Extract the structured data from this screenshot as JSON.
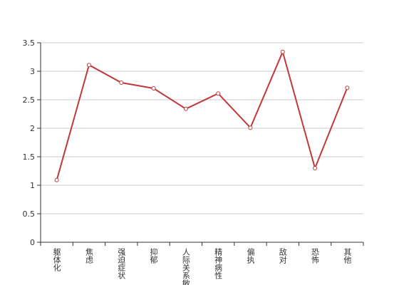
{
  "chart_data": {
    "type": "line",
    "categories": [
      "躯体化",
      "焦虑",
      "强迫症状",
      "抑郁",
      "人际关系敏感",
      "精神病性",
      "偏执",
      "敌对",
      "恐怖",
      "其他"
    ],
    "series": [
      {
        "color": "#c0393b",
        "values": [
          1.09,
          3.11,
          2.8,
          2.7,
          2.34,
          2.61,
          2.01,
          3.34,
          1.3,
          2.71
        ]
      }
    ],
    "ylim": [
      0,
      3.5
    ],
    "yticks": [
      0,
      0.5,
      1,
      1.5,
      2,
      2.5,
      3,
      3.5
    ],
    "grid": true
  }
}
